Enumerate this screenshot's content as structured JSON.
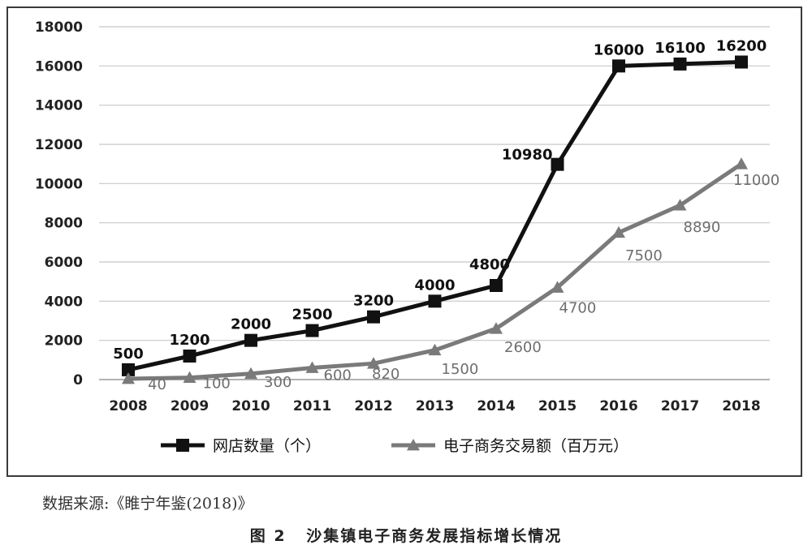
{
  "chart_data": {
    "type": "line",
    "categories": [
      "2008",
      "2009",
      "2010",
      "2011",
      "2012",
      "2013",
      "2014",
      "2015",
      "2016",
      "2017",
      "2018"
    ],
    "series": [
      {
        "name": "网店数量（个）",
        "values": [
          500,
          1200,
          2000,
          2500,
          3200,
          4000,
          4800,
          10980,
          16000,
          16100,
          16200
        ],
        "labels": [
          "500",
          "1200",
          "2000",
          "2500",
          "3200",
          "4000",
          "4800",
          "10980",
          "16000",
          "16100",
          "16200"
        ],
        "color": "#111111",
        "marker": "square"
      },
      {
        "name": "电子商务交易额（百万元）",
        "values": [
          40,
          100,
          300,
          600,
          820,
          1500,
          2600,
          4700,
          7500,
          8890,
          11000
        ],
        "labels": [
          "40",
          "100",
          "300",
          "600",
          "820",
          "1500",
          "2600",
          "4700",
          "7500",
          "8890",
          "11000"
        ],
        "color": "#7a7a7a",
        "marker": "triangle"
      }
    ],
    "yticks": [
      "0",
      "2000",
      "4000",
      "6000",
      "8000",
      "10000",
      "12000",
      "14000",
      "16000",
      "18000"
    ],
    "ylim": [
      0,
      18000
    ],
    "grid": true,
    "legend_position": "bottom"
  },
  "source_note": "数据来源:《睢宁年鉴(2018)》",
  "caption": {
    "figure_no": "图 2",
    "title": "沙集镇电子商务发展指标增长情况"
  }
}
